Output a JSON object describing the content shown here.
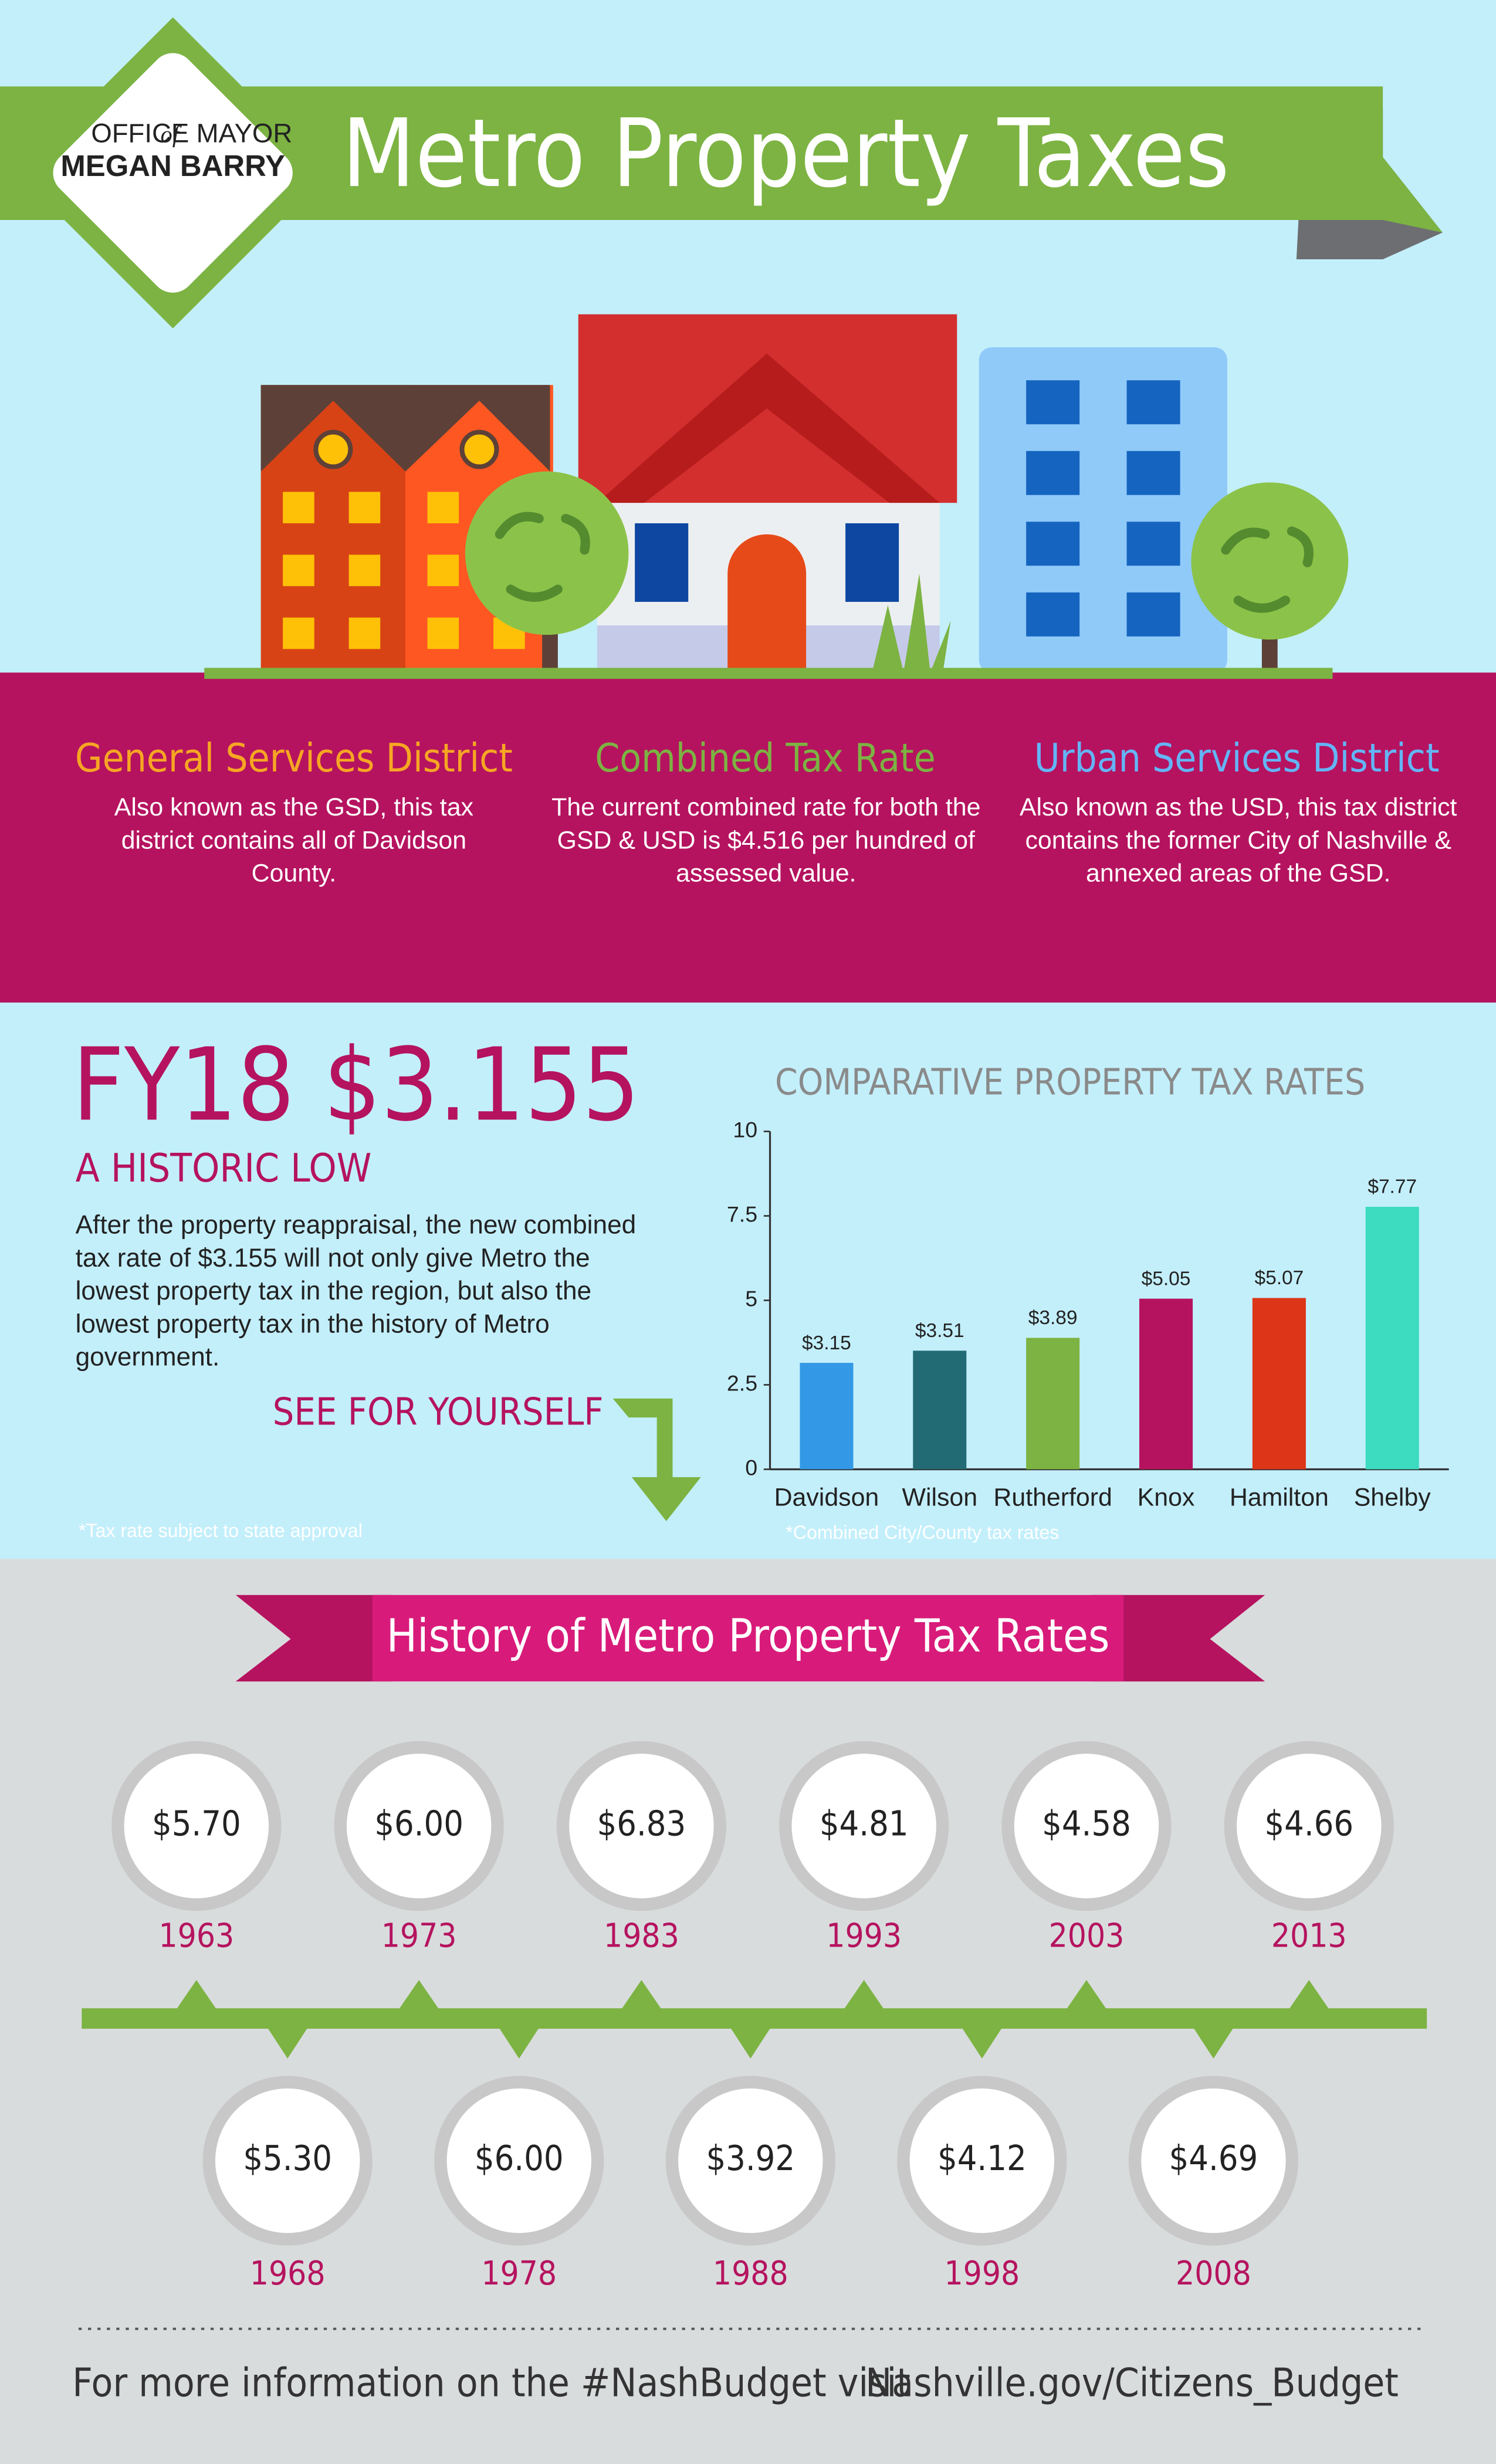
{
  "header": {
    "office_1": "OFFICE",
    "office_of": "of",
    "office_2": "MAYOR",
    "mayor": "MEGAN BARRY",
    "title": "Metro Property Taxes"
  },
  "districts": [
    {
      "title": "General Services District",
      "text": "Also known as the GSD, this tax district contains all of Davidson County."
    },
    {
      "title": "Combined Tax Rate",
      "text": "The current combined rate for both the GSD & USD is $4.516 per hundred of assessed value."
    },
    {
      "title": "Urban Services District",
      "text": "Also known as the USD, this tax district contains the former City of Nashville & annexed areas of the GSD."
    }
  ],
  "highlight": {
    "headline": "FY18 $3.155",
    "subhead": "A HISTORIC LOW",
    "text": "After the property reappraisal, the new combined tax rate of $3.155 will not only give Metro the lowest property tax in the region, but also the lowest property tax in the history of Metro government.",
    "cta": "SEE FOR YOURSELF",
    "footnote": "*Tax rate subject to state approval"
  },
  "chart_data": {
    "type": "bar",
    "title": "COMPARATIVE PROPERTY TAX RATES",
    "categories": [
      "Davidson",
      "Wilson",
      "Rutherford",
      "Knox",
      "Hamilton",
      "Shelby"
    ],
    "values": [
      3.15,
      3.51,
      3.89,
      5.05,
      5.07,
      7.77
    ],
    "value_labels": [
      "$3.15",
      "$3.51",
      "$3.89",
      "$5.05",
      "$5.07",
      "$7.77"
    ],
    "colors": [
      "#3399e6",
      "#236b74",
      "#7cb342",
      "#b5135f",
      "#dd3517",
      "#3ddbc0"
    ],
    "ylim": [
      0,
      10
    ],
    "yticks": [
      0,
      2.5,
      5,
      7.5,
      10
    ],
    "note": "*Combined City/County tax rates"
  },
  "history": {
    "title": "History of Metro Property Tax Rates",
    "entries": [
      {
        "year": "1963",
        "rate": "$5.70"
      },
      {
        "year": "1968",
        "rate": "$5.30"
      },
      {
        "year": "1973",
        "rate": "$6.00"
      },
      {
        "year": "1978",
        "rate": "$6.00"
      },
      {
        "year": "1983",
        "rate": "$6.83"
      },
      {
        "year": "1988",
        "rate": "$3.92"
      },
      {
        "year": "1993",
        "rate": "$4.81"
      },
      {
        "year": "1998",
        "rate": "$4.12"
      },
      {
        "year": "2003",
        "rate": "$4.58"
      },
      {
        "year": "2008",
        "rate": "$4.69"
      },
      {
        "year": "2013",
        "rate": "$4.66"
      }
    ]
  },
  "footer": {
    "text": "For more information on the #NashBudget visit",
    "link": "Nashville.gov/Citizens_Budget"
  }
}
